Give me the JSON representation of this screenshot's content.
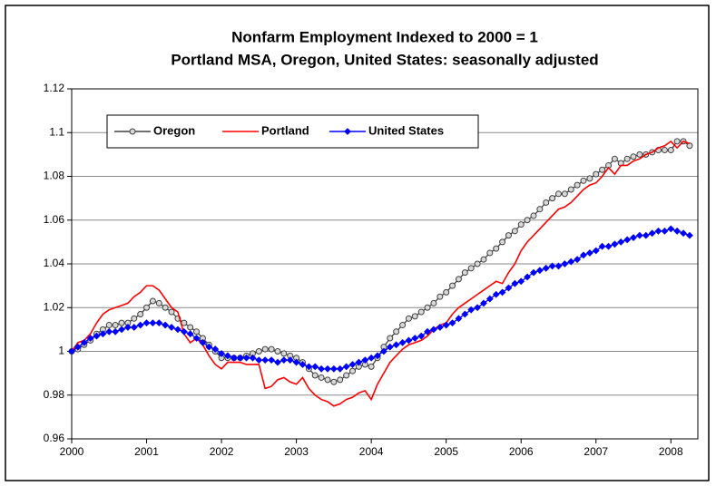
{
  "chart_data": {
    "type": "line",
    "title": "Nonfarm Employment Indexed to 2000 = 1",
    "subtitle": "Portland MSA, Oregon, United States: seasonally adjusted",
    "x": [
      2000,
      2000.083,
      2000.167,
      2000.25,
      2000.333,
      2000.417,
      2000.5,
      2000.583,
      2000.667,
      2000.75,
      2000.833,
      2000.917,
      2001,
      2001.083,
      2001.167,
      2001.25,
      2001.333,
      2001.417,
      2001.5,
      2001.583,
      2001.667,
      2001.75,
      2001.833,
      2001.917,
      2002,
      2002.083,
      2002.167,
      2002.25,
      2002.333,
      2002.417,
      2002.5,
      2002.583,
      2002.667,
      2002.75,
      2002.833,
      2002.917,
      2003,
      2003.083,
      2003.167,
      2003.25,
      2003.333,
      2003.417,
      2003.5,
      2003.583,
      2003.667,
      2003.75,
      2003.833,
      2003.917,
      2004,
      2004.083,
      2004.167,
      2004.25,
      2004.333,
      2004.417,
      2004.5,
      2004.583,
      2004.667,
      2004.75,
      2004.833,
      2004.917,
      2005,
      2005.083,
      2005.167,
      2005.25,
      2005.333,
      2005.417,
      2005.5,
      2005.583,
      2005.667,
      2005.75,
      2005.833,
      2005.917,
      2006,
      2006.083,
      2006.167,
      2006.25,
      2006.333,
      2006.417,
      2006.5,
      2006.583,
      2006.667,
      2006.75,
      2006.833,
      2006.917,
      2007,
      2007.083,
      2007.167,
      2007.25,
      2007.333,
      2007.417,
      2007.5,
      2007.583,
      2007.667,
      2007.75,
      2007.833,
      2007.917,
      2008,
      2008.083,
      2008.167,
      2008.25
    ],
    "series": [
      {
        "name": "Oregon",
        "color": "#404040",
        "marker": "circle",
        "values": [
          1.0,
          1.001,
          1.003,
          1.005,
          1.008,
          1.01,
          1.012,
          1.012,
          1.013,
          1.013,
          1.015,
          1.017,
          1.02,
          1.023,
          1.022,
          1.02,
          1.018,
          1.015,
          1.013,
          1.011,
          1.009,
          1.006,
          1.003,
          1.0,
          0.997,
          0.997,
          0.997,
          0.997,
          0.998,
          0.999,
          1.0,
          1.001,
          1.001,
          1.0,
          0.999,
          0.998,
          0.997,
          0.995,
          0.992,
          0.989,
          0.988,
          0.987,
          0.986,
          0.987,
          0.989,
          0.991,
          0.993,
          0.994,
          0.993,
          0.997,
          1.002,
          1.006,
          1.009,
          1.012,
          1.015,
          1.016,
          1.018,
          1.02,
          1.022,
          1.025,
          1.027,
          1.03,
          1.033,
          1.036,
          1.038,
          1.04,
          1.042,
          1.045,
          1.047,
          1.05,
          1.053,
          1.055,
          1.058,
          1.06,
          1.062,
          1.065,
          1.068,
          1.07,
          1.072,
          1.072,
          1.074,
          1.076,
          1.078,
          1.079,
          1.081,
          1.083,
          1.085,
          1.088,
          1.086,
          1.088,
          1.089,
          1.09,
          1.09,
          1.091,
          1.092,
          1.092,
          1.092,
          1.096,
          1.096,
          1.094
        ]
      },
      {
        "name": "Portland",
        "color": "#ff0000",
        "marker": "none",
        "values": [
          1.0,
          1.004,
          1.005,
          1.008,
          1.013,
          1.017,
          1.019,
          1.02,
          1.021,
          1.022,
          1.025,
          1.027,
          1.03,
          1.03,
          1.028,
          1.024,
          1.02,
          1.018,
          1.008,
          1.004,
          1.006,
          1.003,
          0.998,
          0.994,
          0.992,
          0.995,
          0.995,
          0.995,
          0.994,
          0.994,
          0.994,
          0.983,
          0.984,
          0.987,
          0.988,
          0.986,
          0.985,
          0.988,
          0.983,
          0.98,
          0.978,
          0.977,
          0.975,
          0.976,
          0.978,
          0.979,
          0.981,
          0.982,
          0.978,
          0.985,
          0.99,
          0.995,
          0.998,
          1.001,
          1.003,
          1.004,
          1.005,
          1.007,
          1.01,
          1.012,
          1.013,
          1.017,
          1.02,
          1.022,
          1.024,
          1.026,
          1.028,
          1.03,
          1.032,
          1.031,
          1.036,
          1.04,
          1.046,
          1.05,
          1.053,
          1.056,
          1.059,
          1.062,
          1.065,
          1.066,
          1.068,
          1.071,
          1.074,
          1.076,
          1.077,
          1.08,
          1.084,
          1.081,
          1.085,
          1.085,
          1.087,
          1.088,
          1.09,
          1.091,
          1.093,
          1.094,
          1.096,
          1.093,
          1.096,
          1.095
        ]
      },
      {
        "name": "United States",
        "color": "#0000ff",
        "marker": "diamond",
        "values": [
          1.0,
          1.002,
          1.004,
          1.006,
          1.007,
          1.008,
          1.009,
          1.009,
          1.01,
          1.011,
          1.011,
          1.012,
          1.013,
          1.013,
          1.013,
          1.012,
          1.011,
          1.01,
          1.009,
          1.008,
          1.006,
          1.004,
          1.002,
          1.001,
          0.999,
          0.998,
          0.997,
          0.997,
          0.997,
          0.997,
          0.996,
          0.996,
          0.996,
          0.995,
          0.996,
          0.996,
          0.995,
          0.994,
          0.993,
          0.993,
          0.992,
          0.992,
          0.992,
          0.992,
          0.993,
          0.994,
          0.995,
          0.996,
          0.997,
          0.998,
          1.0,
          1.002,
          1.003,
          1.004,
          1.005,
          1.006,
          1.007,
          1.009,
          1.01,
          1.011,
          1.012,
          1.013,
          1.015,
          1.017,
          1.019,
          1.02,
          1.022,
          1.024,
          1.026,
          1.027,
          1.029,
          1.031,
          1.032,
          1.034,
          1.036,
          1.037,
          1.038,
          1.039,
          1.039,
          1.04,
          1.041,
          1.042,
          1.044,
          1.045,
          1.046,
          1.048,
          1.048,
          1.049,
          1.05,
          1.051,
          1.052,
          1.053,
          1.053,
          1.054,
          1.055,
          1.055,
          1.056,
          1.055,
          1.054,
          1.053
        ]
      }
    ],
    "xlim": [
      2000,
      2008.36
    ],
    "xticks": [
      2000,
      2001,
      2002,
      2003,
      2004,
      2005,
      2006,
      2007,
      2008
    ],
    "ylim": [
      0.96,
      1.12
    ],
    "yticks": [
      0.96,
      0.98,
      1,
      1.02,
      1.04,
      1.06,
      1.08,
      1.1,
      1.12
    ],
    "grid": true,
    "legend": "top-left"
  }
}
